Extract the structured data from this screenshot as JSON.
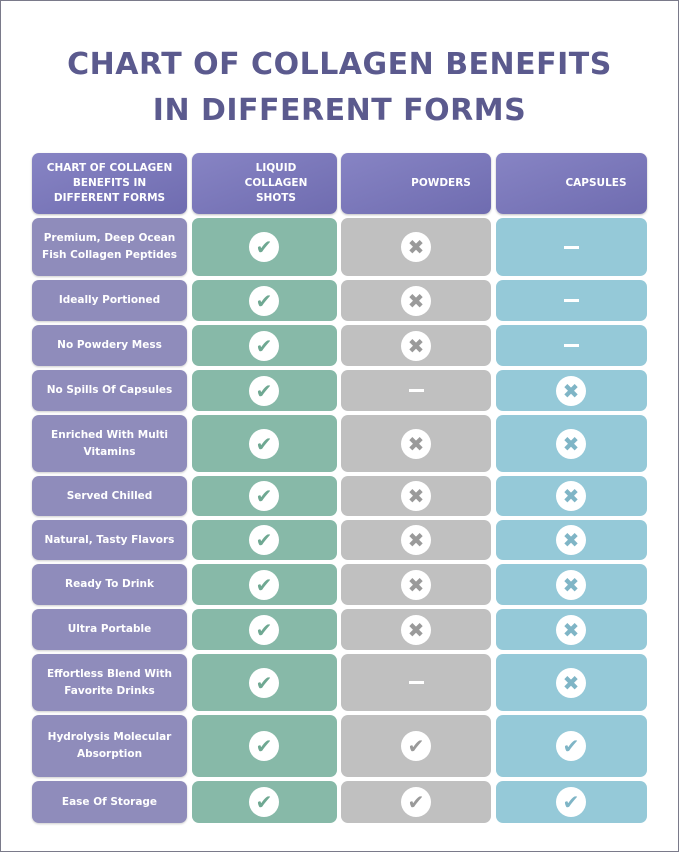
{
  "title_line1": "CHART OF COLLAGEN BENEFITS",
  "title_line2": "IN DIFFERENT FORMS",
  "headers": [
    "CHART OF COLLAGEN BENEFITS IN DIFFERENT FORMS",
    "LIQUID COLLAGEN SHOTS",
    "POWDERS",
    "CAPSULES"
  ],
  "colors": {
    "title": "#5b5a8e",
    "header": "#7b78b8",
    "label": "#8f8cbb",
    "liquid": "#87b9a8",
    "powders": "#c0c0c0",
    "capsules": "#95c9d8"
  },
  "rows": [
    {
      "label": "Premium, Deep Ocean Fish Collagen Peptides",
      "values": [
        "check",
        "cross",
        "dash"
      ]
    },
    {
      "label": "Ideally Portioned",
      "values": [
        "check",
        "cross",
        "dash"
      ]
    },
    {
      "label": "No Powdery Mess",
      "values": [
        "check",
        "cross",
        "dash"
      ]
    },
    {
      "label": "No Spills Of Capsules",
      "values": [
        "check",
        "dash",
        "cross"
      ]
    },
    {
      "label": "Enriched With Multi Vitamins",
      "values": [
        "check",
        "cross",
        "cross"
      ]
    },
    {
      "label": "Served Chilled",
      "values": [
        "check",
        "cross",
        "cross"
      ]
    },
    {
      "label": "Natural, Tasty Flavors",
      "values": [
        "check",
        "cross",
        "cross"
      ]
    },
    {
      "label": "Ready To Drink",
      "values": [
        "check",
        "cross",
        "cross"
      ]
    },
    {
      "label": "Ultra Portable",
      "values": [
        "check",
        "cross",
        "cross"
      ]
    },
    {
      "label": "Effortless Blend With Favorite Drinks",
      "values": [
        "check",
        "dash",
        "cross"
      ]
    },
    {
      "label": "Hydrolysis Molecular Absorption",
      "values": [
        "check",
        "check",
        "check"
      ]
    },
    {
      "label": "Ease Of Storage",
      "values": [
        "check",
        "check",
        "check"
      ]
    }
  ]
}
